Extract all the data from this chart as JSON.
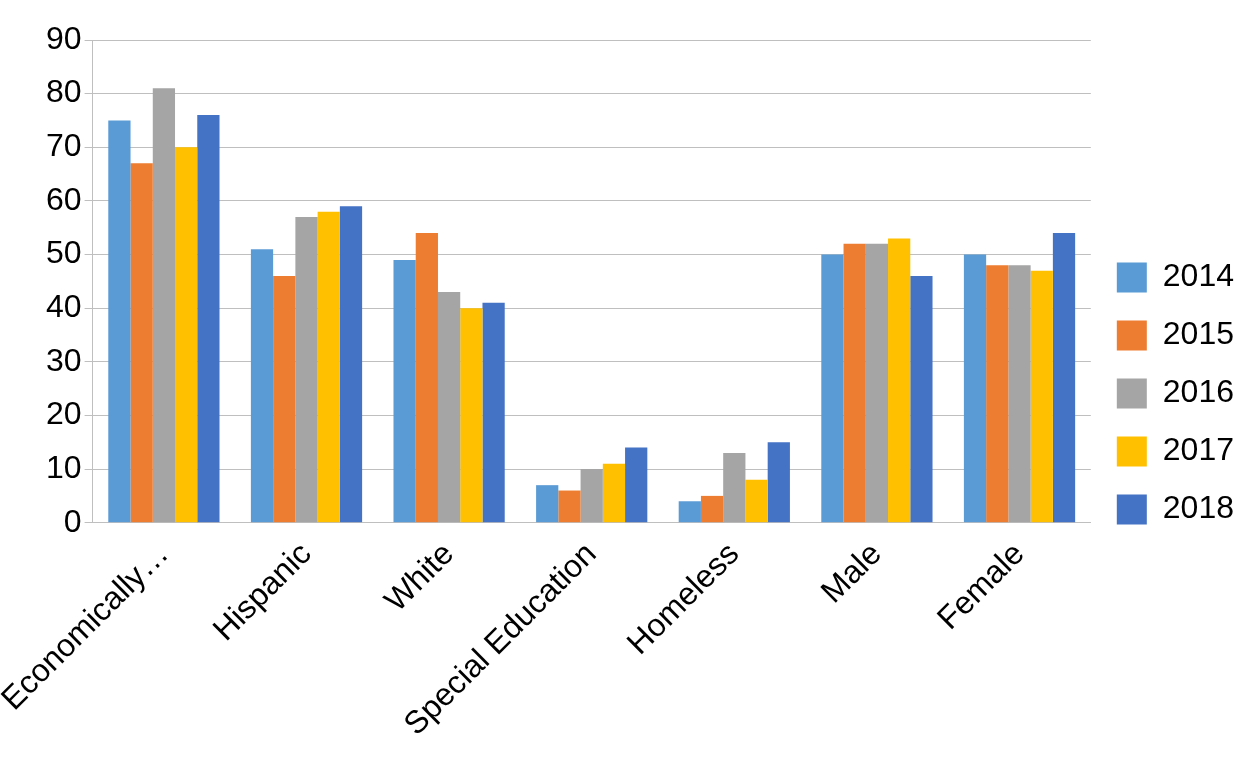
{
  "chart_data": {
    "type": "bar",
    "categories": [
      "Economically…",
      "Hispanic",
      "White",
      "Special Education",
      "Homeless",
      "Male",
      "Female"
    ],
    "series": [
      {
        "name": "2014",
        "color": "#5b9bd5",
        "values": [
          75,
          51,
          49,
          7,
          4,
          50,
          50
        ]
      },
      {
        "name": "2015",
        "color": "#ed7d31",
        "values": [
          67,
          46,
          54,
          6,
          5,
          52,
          48
        ]
      },
      {
        "name": "2016",
        "color": "#a5a5a5",
        "values": [
          81,
          57,
          43,
          10,
          13,
          52,
          48
        ]
      },
      {
        "name": "2017",
        "color": "#ffc000",
        "values": [
          70,
          58,
          40,
          11,
          8,
          53,
          47
        ]
      },
      {
        "name": "2018",
        "color": "#4472c4",
        "values": [
          76,
          59,
          41,
          14,
          15,
          46,
          54
        ]
      }
    ],
    "ylim": [
      0,
      90
    ],
    "yticks": [
      0,
      10,
      20,
      30,
      40,
      50,
      60,
      70,
      80,
      90
    ],
    "grid": "y",
    "legend": "right"
  }
}
